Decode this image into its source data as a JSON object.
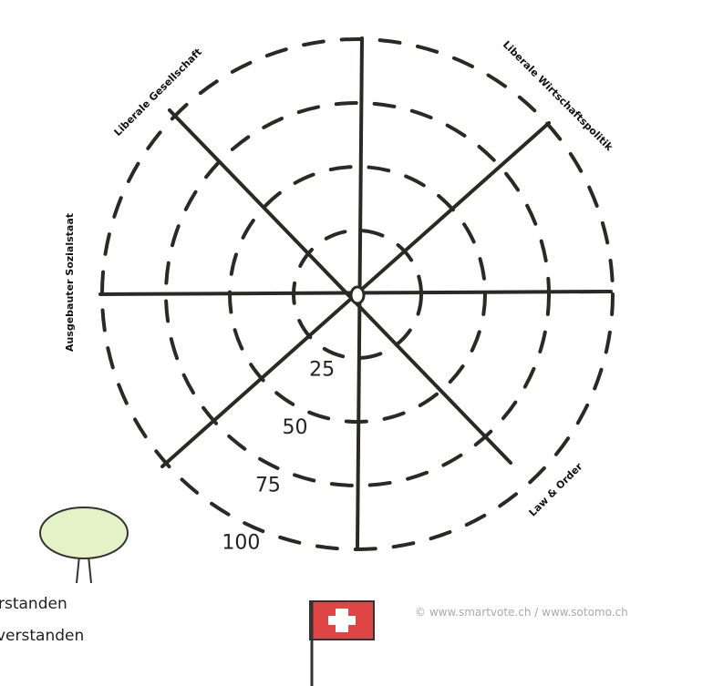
{
  "chart_data": {
    "type": "radar",
    "axes": [
      "Liberale Gesellschaft",
      "Liberale Wirtschaftspolitik",
      "Ausgebauter Sozialstaat",
      "Law & Order"
    ],
    "rlim": [
      0,
      100
    ],
    "rticks": [
      25,
      50,
      75,
      100
    ]
  },
  "legend": [
    "rstanden",
    "verstanden"
  ],
  "credit": "© www.smartvote.ch / www.sotomo.ch"
}
